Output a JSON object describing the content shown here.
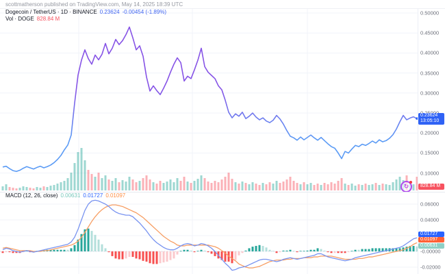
{
  "attribution": "scottmatherson published on TradingView.com, May 14, 2025 18:39 UTC",
  "header": {
    "symbol_title": "Dogecoin / TetherUS · 1D · BINANCE",
    "last_price": "0.23624",
    "change": "-0.00454 (-1.89%)",
    "volume_label": "Vol · DOGE",
    "volume_value": "828.84 M",
    "macd_label": "MACD (12, 26, close)",
    "macd_hist_value": "0.00631",
    "macd_value": "0.01727",
    "macd_signal_value": "0.01097"
  },
  "axis": {
    "price_labels": [
      "0.50000",
      "0.45000",
      "0.40000",
      "0.35000",
      "0.30000",
      "0.25000",
      "0.20000",
      "0.15000",
      "0.10000"
    ],
    "macd_labels": [
      "0.06000",
      "0.04000",
      "-0.00000",
      "-0.02000"
    ],
    "price_badge": {
      "price": "0.23624",
      "countdown": "13:05:10",
      "color": "#2f62f5"
    },
    "volume_badge": {
      "text": "828.84 M",
      "color": "#f7525f"
    },
    "macd_badges": [
      {
        "text": "0.01727",
        "color": "#2962ff"
      },
      {
        "text": "0.01097",
        "color": "#ff6136"
      },
      {
        "text": "0.00631",
        "color": "#8fd0c5"
      }
    ]
  },
  "colors": {
    "price_line_top": "#8653e6",
    "price_line_bottom": "#5b9bf5",
    "volume_up": "rgba(38,166,154,0.45)",
    "volume_down": "rgba(247,82,95,0.45)",
    "hist_pos_grow": "#26a69a",
    "hist_pos_fall": "#b3dfdb",
    "hist_neg_grow": "#f74f4f",
    "hist_neg_fall": "#fbc9cc",
    "macd_line": "#7893f0",
    "signal_line": "#f79e63",
    "grid": "#f0f3fa"
  },
  "chart_data": {
    "type": "line",
    "symbol": "Dogecoin / TetherUS",
    "interval": "1D",
    "exchange": "BINANCE",
    "title": "Dogecoin / TetherUS · 1D · BINANCE",
    "last_price": 0.23624,
    "change": -0.00454,
    "change_pct": -1.89,
    "volume_last_label": "828.84 M",
    "price_axis_ticks": [
      0.5,
      0.45,
      0.4,
      0.35,
      0.3,
      0.25,
      0.2,
      0.15,
      0.1
    ],
    "macd_axis_ticks": [
      0.06,
      0.04,
      0.02,
      0.0,
      -0.02
    ],
    "macd_settings": "12, 26, close",
    "macd_last": {
      "macd": 0.01727,
      "signal": 0.01097,
      "hist": 0.00631
    },
    "legend_position": "top-left",
    "grid": true,
    "prices": [
      0.115,
      0.117,
      0.111,
      0.106,
      0.104,
      0.107,
      0.112,
      0.116,
      0.113,
      0.11,
      0.114,
      0.117,
      0.113,
      0.116,
      0.12,
      0.126,
      0.134,
      0.144,
      0.158,
      0.17,
      0.195,
      0.275,
      0.345,
      0.382,
      0.408,
      0.386,
      0.372,
      0.395,
      0.383,
      0.397,
      0.424,
      0.398,
      0.412,
      0.434,
      0.421,
      0.431,
      0.446,
      0.465,
      0.438,
      0.408,
      0.418,
      0.392,
      0.34,
      0.305,
      0.318,
      0.306,
      0.296,
      0.312,
      0.33,
      0.352,
      0.372,
      0.388,
      0.376,
      0.33,
      0.342,
      0.336,
      0.358,
      0.382,
      0.412,
      0.366,
      0.352,
      0.344,
      0.336,
      0.318,
      0.308,
      0.282,
      0.252,
      0.238,
      0.248,
      0.242,
      0.252,
      0.236,
      0.242,
      0.25,
      0.24,
      0.233,
      0.238,
      0.23,
      0.226,
      0.232,
      0.244,
      0.235,
      0.222,
      0.206,
      0.192,
      0.188,
      0.182,
      0.19,
      0.183,
      0.189,
      0.195,
      0.188,
      0.182,
      0.189,
      0.181,
      0.173,
      0.166,
      0.162,
      0.15,
      0.136,
      0.154,
      0.15,
      0.16,
      0.169,
      0.166,
      0.172,
      0.169,
      0.174,
      0.18,
      0.175,
      0.183,
      0.178,
      0.181,
      0.187,
      0.196,
      0.21,
      0.228,
      0.244,
      0.233,
      0.2375,
      0.2405,
      0.236
    ],
    "volumes_rel": [
      6,
      9,
      5,
      4,
      3,
      4,
      6,
      5,
      4,
      3,
      5,
      4,
      6,
      5,
      7,
      8,
      10,
      12,
      14,
      18,
      26,
      40,
      56,
      62,
      44,
      30,
      24,
      20,
      26,
      18,
      22,
      16,
      14,
      18,
      12,
      15,
      13,
      20,
      16,
      12,
      14,
      18,
      22,
      16,
      12,
      10,
      14,
      11,
      13,
      16,
      12,
      18,
      14,
      20,
      13,
      11,
      14,
      17,
      22,
      18,
      13,
      11,
      14,
      12,
      16,
      20,
      26,
      17,
      12,
      10,
      13,
      11,
      9,
      12,
      10,
      8,
      11,
      9,
      12,
      10,
      14,
      11,
      13,
      16,
      20,
      14,
      11,
      9,
      12,
      9,
      11,
      8,
      10,
      8,
      11,
      9,
      12,
      10,
      14,
      18,
      10,
      8,
      10,
      7,
      9,
      8,
      10,
      8,
      9,
      11,
      8,
      10,
      9,
      8,
      12,
      16,
      20,
      15,
      22,
      12,
      9,
      20
    ],
    "macd": [
      0.002,
      0.004,
      0.003,
      0.001,
      0.0,
      -0.001,
      0.0,
      0.001,
      0.0,
      -0.001,
      0.0,
      0.001,
      0.002,
      0.003,
      0.004,
      0.005,
      0.006,
      0.007,
      0.008,
      0.009,
      0.012,
      0.018,
      0.028,
      0.04,
      0.052,
      0.06,
      0.064,
      0.065,
      0.064,
      0.062,
      0.06,
      0.057,
      0.053,
      0.05,
      0.048,
      0.047,
      0.046,
      0.046,
      0.044,
      0.04,
      0.036,
      0.031,
      0.026,
      0.02,
      0.015,
      0.011,
      0.008,
      0.005,
      0.003,
      0.002,
      0.002,
      0.004,
      0.007,
      0.009,
      0.01,
      0.009,
      0.007,
      0.008,
      0.01,
      0.009,
      0.007,
      0.004,
      0.0,
      -0.005,
      -0.01,
      -0.015,
      -0.019,
      -0.024,
      -0.023,
      -0.021,
      -0.02,
      -0.019,
      -0.017,
      -0.015,
      -0.013,
      -0.011,
      -0.01,
      -0.01,
      -0.011,
      -0.012,
      -0.013,
      -0.012,
      -0.01,
      -0.009,
      -0.008,
      -0.009,
      -0.01,
      -0.009,
      -0.008,
      -0.007,
      -0.006,
      -0.005,
      -0.003,
      -0.003,
      -0.005,
      -0.007,
      -0.008,
      -0.009,
      -0.01,
      -0.011,
      -0.012,
      -0.011,
      -0.01,
      -0.008,
      -0.007,
      -0.006,
      -0.005,
      -0.004,
      -0.003,
      -0.002,
      -0.001,
      0.0,
      0.001,
      0.002,
      0.003,
      0.004,
      0.005,
      0.007,
      0.01,
      0.013,
      0.016,
      0.01727
    ],
    "signal": [
      0.004,
      0.005,
      0.004,
      0.003,
      0.002,
      0.001,
      0.001,
      0.001,
      0.001,
      0.0,
      0.0,
      0.0,
      0.001,
      0.001,
      0.002,
      0.003,
      0.004,
      0.005,
      0.006,
      0.007,
      0.008,
      0.01,
      0.013,
      0.018,
      0.024,
      0.031,
      0.038,
      0.044,
      0.049,
      0.053,
      0.056,
      0.058,
      0.059,
      0.059,
      0.058,
      0.057,
      0.055,
      0.053,
      0.051,
      0.049,
      0.046,
      0.043,
      0.039,
      0.035,
      0.031,
      0.027,
      0.023,
      0.019,
      0.016,
      0.013,
      0.011,
      0.008,
      0.007,
      0.007,
      0.008,
      0.008,
      0.008,
      0.008,
      0.008,
      0.008,
      0.008,
      0.007,
      0.006,
      0.004,
      0.001,
      -0.002,
      -0.006,
      -0.009,
      -0.012,
      -0.016,
      -0.018,
      -0.02,
      -0.021,
      -0.021,
      -0.02,
      -0.019,
      -0.017,
      -0.015,
      -0.013,
      -0.012,
      -0.011,
      -0.011,
      -0.011,
      -0.01,
      -0.01,
      -0.009,
      -0.009,
      -0.009,
      -0.008,
      -0.008,
      -0.008,
      -0.007,
      -0.007,
      -0.006,
      -0.006,
      -0.006,
      -0.006,
      -0.007,
      -0.008,
      -0.009,
      -0.01,
      -0.01,
      -0.01,
      -0.01,
      -0.009,
      -0.009,
      -0.008,
      -0.007,
      -0.007,
      -0.006,
      -0.005,
      -0.004,
      -0.003,
      -0.002,
      -0.001,
      0.0,
      0.001,
      0.002,
      0.004,
      0.006,
      0.009,
      0.01097
    ]
  }
}
